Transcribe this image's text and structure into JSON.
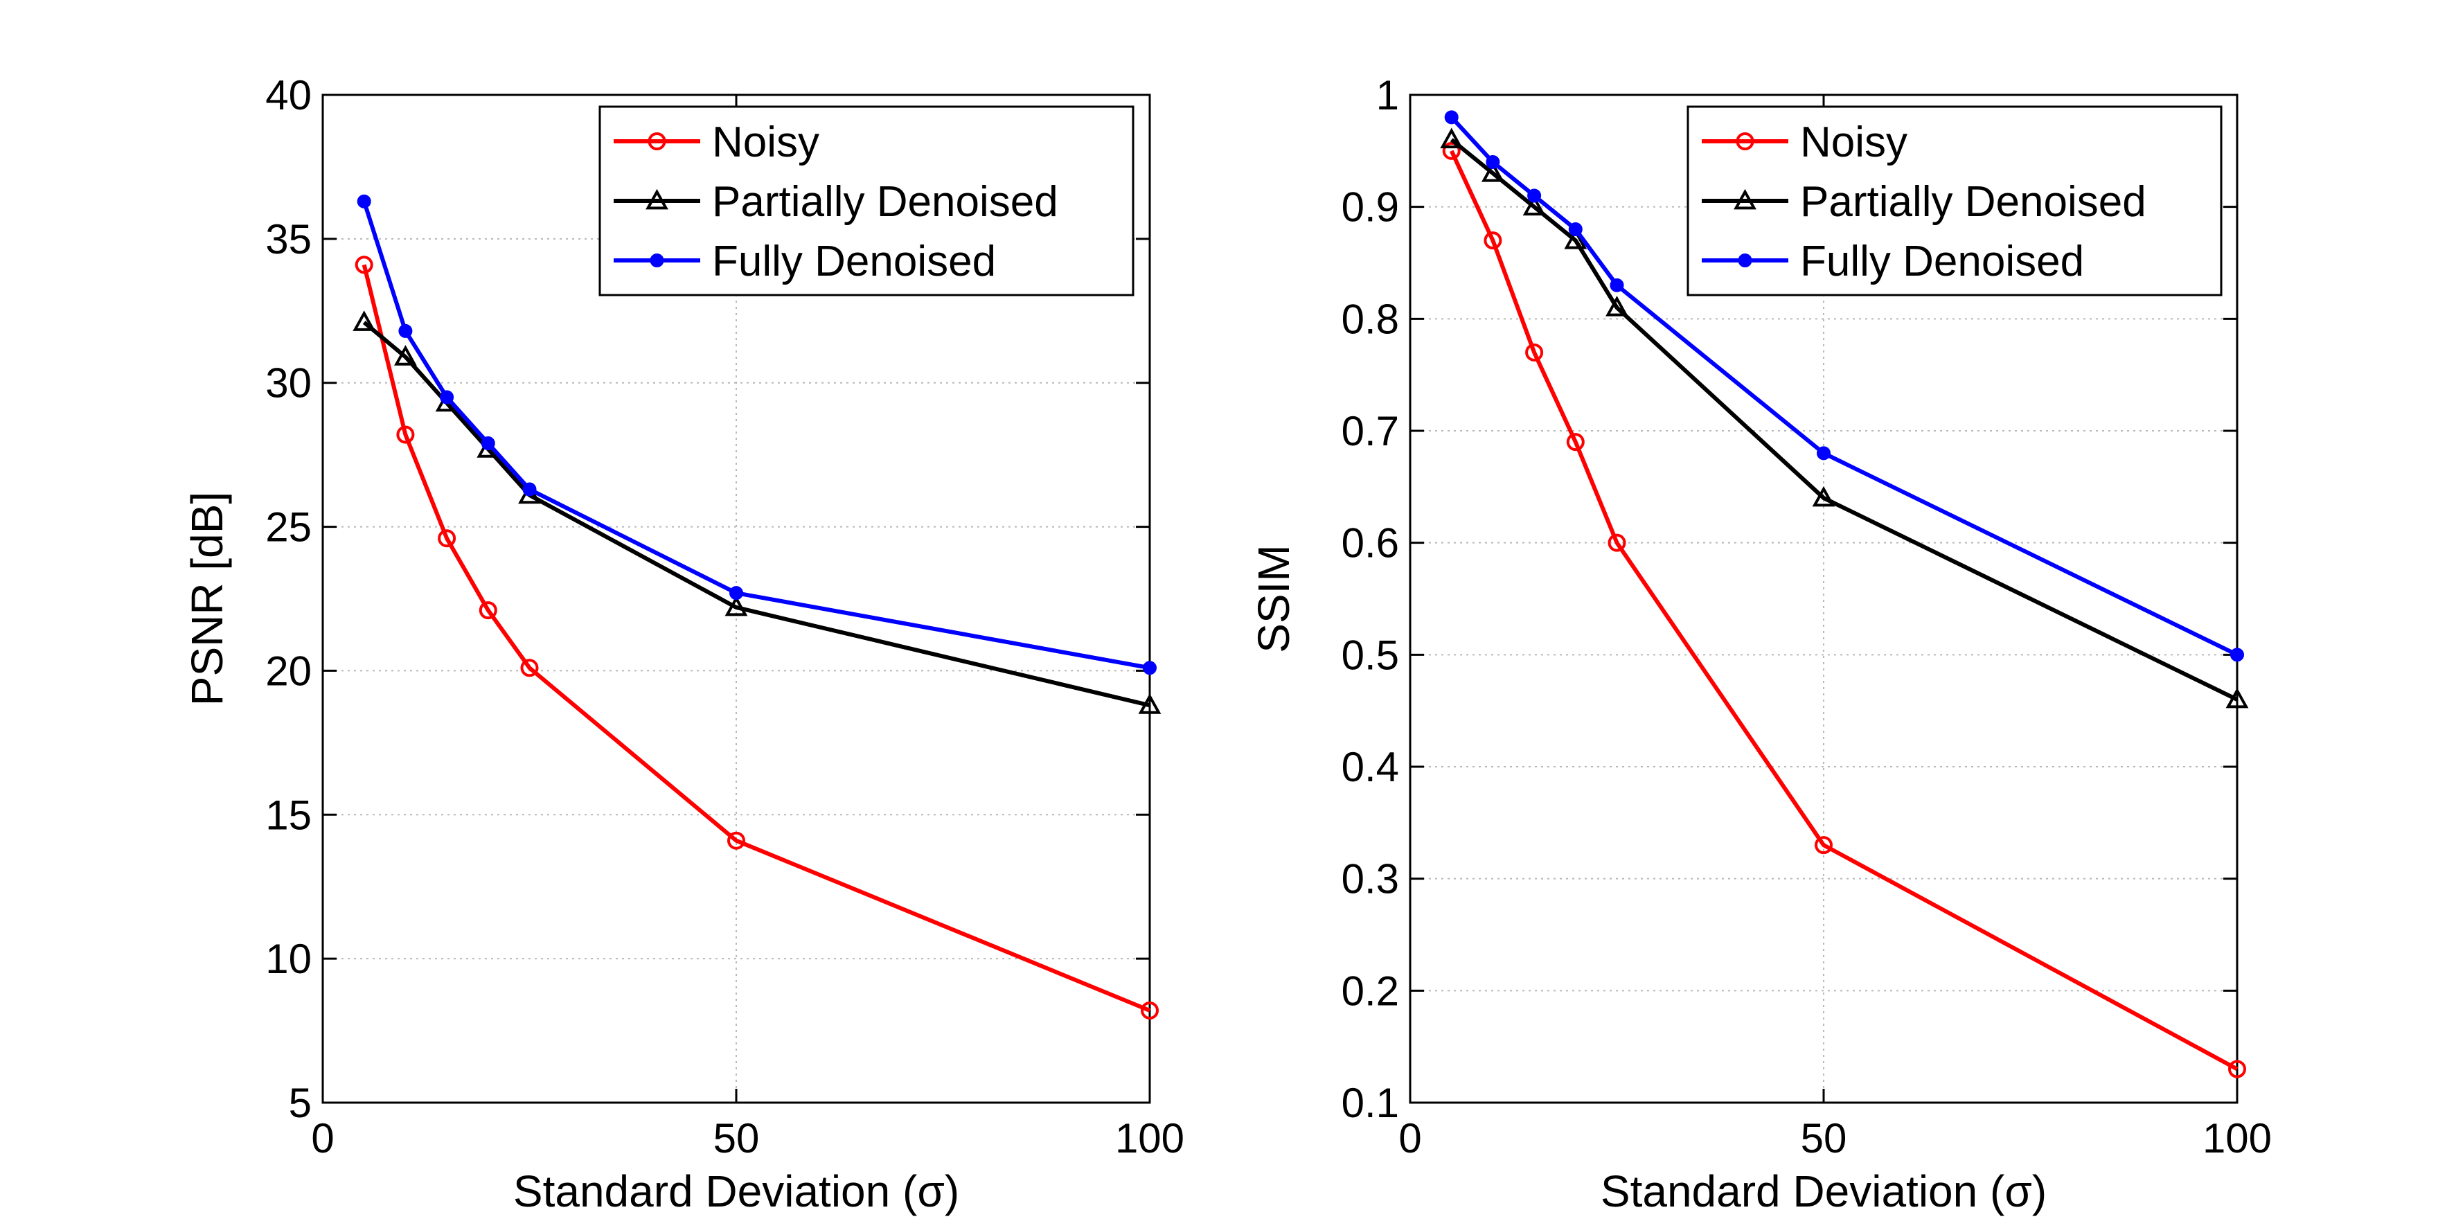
{
  "chart_data": [
    {
      "type": "line",
      "xlabel": "Standard Deviation (σ)",
      "ylabel": "PSNR [dB]",
      "xlim": [
        0,
        100
      ],
      "ylim": [
        5,
        40
      ],
      "xticks": [
        0,
        50,
        100
      ],
      "yticks": [
        5,
        10,
        15,
        20,
        25,
        30,
        35,
        40
      ],
      "grid": true,
      "legend_position": "top-right",
      "x": [
        5,
        10,
        15,
        20,
        25,
        50,
        100
      ],
      "series": [
        {
          "name": "Noisy",
          "color": "#ff0000",
          "marker": "circle",
          "values": [
            34.1,
            28.2,
            24.6,
            22.1,
            20.1,
            14.1,
            8.2
          ]
        },
        {
          "name": "Partially Denoised",
          "color": "#000000",
          "marker": "triangle",
          "values": [
            32.1,
            30.9,
            29.3,
            27.7,
            26.1,
            22.2,
            18.8
          ]
        },
        {
          "name": "Fully Denoised",
          "color": "#0000ff",
          "marker": "dot",
          "values": [
            36.3,
            31.8,
            29.5,
            27.9,
            26.3,
            22.7,
            20.1
          ]
        }
      ]
    },
    {
      "type": "line",
      "xlabel": "Standard Deviation (σ)",
      "ylabel": "SSIM",
      "xlim": [
        0,
        100
      ],
      "ylim": [
        0.1,
        1
      ],
      "xticks": [
        0,
        50,
        100
      ],
      "yticks": [
        0.1,
        0.2,
        0.3,
        0.4,
        0.5,
        0.6,
        0.7,
        0.8,
        0.9,
        1
      ],
      "grid": true,
      "legend_position": "top-right",
      "x": [
        5,
        10,
        15,
        20,
        25,
        50,
        100
      ],
      "series": [
        {
          "name": "Noisy",
          "color": "#ff0000",
          "marker": "circle",
          "values": [
            0.95,
            0.87,
            0.77,
            0.69,
            0.6,
            0.33,
            0.13
          ]
        },
        {
          "name": "Partially Denoised",
          "color": "#000000",
          "marker": "triangle",
          "values": [
            0.96,
            0.93,
            0.9,
            0.87,
            0.81,
            0.64,
            0.46
          ]
        },
        {
          "name": "Fully Denoised",
          "color": "#0000ff",
          "marker": "dot",
          "values": [
            0.98,
            0.94,
            0.91,
            0.88,
            0.83,
            0.68,
            0.5
          ]
        }
      ]
    }
  ]
}
